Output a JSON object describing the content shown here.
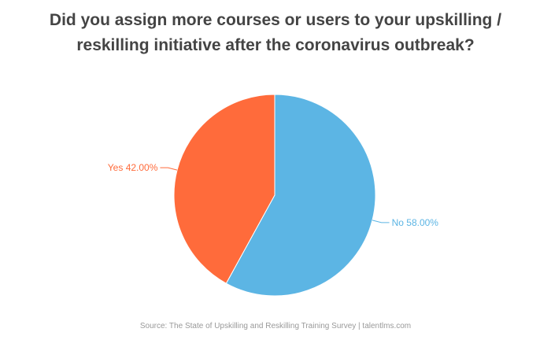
{
  "title": {
    "line1": "Did you assign more courses or users to your upskilling /",
    "line2": "reskilling initiative after the coronavirus outbreak?"
  },
  "chart_data": {
    "type": "pie",
    "title": "Did you assign more courses or users to your upskilling / reskilling initiative after the coronavirus outbreak?",
    "slices": [
      {
        "label": "No",
        "value": 58.0,
        "display": "No 58.00%",
        "color": "#5cb5e4"
      },
      {
        "label": "Yes",
        "value": 42.0,
        "display": "Yes 42.00%",
        "color": "#ff6b3b"
      }
    ],
    "start_angle_deg": 0,
    "direction": "clockwise"
  },
  "source": {
    "text": "Source: The State of Upskilling and Reskilling Training Survey  |  talentlms.com"
  }
}
